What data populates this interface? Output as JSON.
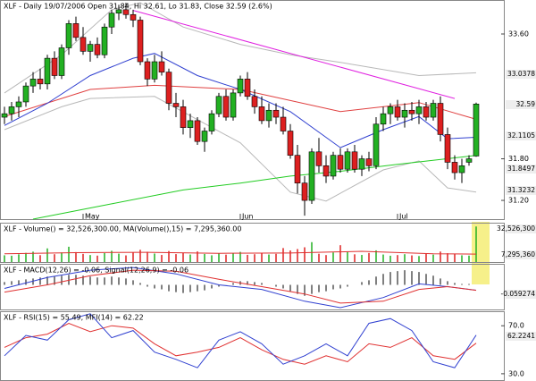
{
  "chart_data": [
    {
      "type": "candlestick",
      "title": "XLF - Daily 19/07/2006 Open 31.84, Hi 32.61, Lo 31.83, Close 32.59 (2.6%)",
      "up_color": "#22b022",
      "down_color": "#dd2020",
      "ylim": [
        30.93,
        34.09
      ],
      "yticks": [
        {
          "value": 33.6,
          "label": "33.60"
        },
        {
          "value": 31.8,
          "label": "31.80"
        },
        {
          "value": 31.2,
          "label": "31.20"
        }
      ],
      "x_labels": [
        {
          "index": 11,
          "label": "May"
        },
        {
          "index": 33,
          "label": "Jun"
        },
        {
          "index": 55,
          "label": "Jul"
        }
      ],
      "ohlc": [
        [
          32.4,
          32.55,
          32.3,
          32.45
        ],
        [
          32.45,
          32.62,
          32.35,
          32.55
        ],
        [
          32.55,
          32.7,
          32.4,
          32.62
        ],
        [
          32.62,
          32.9,
          32.55,
          32.85
        ],
        [
          32.85,
          33.05,
          32.75,
          32.95
        ],
        [
          32.95,
          33.1,
          32.8,
          32.88
        ],
        [
          32.88,
          33.3,
          32.8,
          33.25
        ],
        [
          33.25,
          33.35,
          32.95,
          33.0
        ],
        [
          33.0,
          33.45,
          32.95,
          33.4
        ],
        [
          33.4,
          33.8,
          33.3,
          33.75
        ],
        [
          33.75,
          33.85,
          33.5,
          33.55
        ],
        [
          33.55,
          33.7,
          33.3,
          33.35
        ],
        [
          33.35,
          33.5,
          33.2,
          33.45
        ],
        [
          33.45,
          33.55,
          33.25,
          33.3
        ],
        [
          33.3,
          33.75,
          33.25,
          33.7
        ],
        [
          33.7,
          33.95,
          33.6,
          33.9
        ],
        [
          33.9,
          34.02,
          33.8,
          33.95
        ],
        [
          33.95,
          34.05,
          33.82,
          33.88
        ],
        [
          33.88,
          33.95,
          33.7,
          33.8
        ],
        [
          33.8,
          33.85,
          33.15,
          33.2
        ],
        [
          33.2,
          33.25,
          32.85,
          32.95
        ],
        [
          32.95,
          33.3,
          32.9,
          33.2
        ],
        [
          33.2,
          33.35,
          33.0,
          33.05
        ],
        [
          33.05,
          33.1,
          32.5,
          32.6
        ],
        [
          32.6,
          32.75,
          32.4,
          32.55
        ],
        [
          32.55,
          32.65,
          32.15,
          32.25
        ],
        [
          32.25,
          32.45,
          32.1,
          32.35
        ],
        [
          32.35,
          32.4,
          32.0,
          32.05
        ],
        [
          32.05,
          32.25,
          31.9,
          32.2
        ],
        [
          32.2,
          32.5,
          32.15,
          32.45
        ],
        [
          32.45,
          32.75,
          32.4,
          32.7
        ],
        [
          32.7,
          32.8,
          32.35,
          32.4
        ],
        [
          32.4,
          32.8,
          32.35,
          32.75
        ],
        [
          32.75,
          33.0,
          32.7,
          32.95
        ],
        [
          32.95,
          33.05,
          32.65,
          32.7
        ],
        [
          32.7,
          32.8,
          32.45,
          32.55
        ],
        [
          32.55,
          32.7,
          32.3,
          32.35
        ],
        [
          32.35,
          32.6,
          32.25,
          32.5
        ],
        [
          32.5,
          32.6,
          32.3,
          32.4
        ],
        [
          32.4,
          32.55,
          32.15,
          32.2
        ],
        [
          32.2,
          32.3,
          31.8,
          31.85
        ],
        [
          31.85,
          32.0,
          31.3,
          31.45
        ],
        [
          31.45,
          31.55,
          30.98,
          31.2
        ],
        [
          31.2,
          31.95,
          31.15,
          31.9
        ],
        [
          31.9,
          32.1,
          31.6,
          31.7
        ],
        [
          31.7,
          31.85,
          31.45,
          31.55
        ],
        [
          31.55,
          31.9,
          31.5,
          31.85
        ],
        [
          31.85,
          31.95,
          31.6,
          31.65
        ],
        [
          31.65,
          31.95,
          31.6,
          31.9
        ],
        [
          31.9,
          32.0,
          31.6,
          31.65
        ],
        [
          31.65,
          31.85,
          31.55,
          31.8
        ],
        [
          31.8,
          31.9,
          31.62,
          31.7
        ],
        [
          31.7,
          32.4,
          31.65,
          32.3
        ],
        [
          32.3,
          32.55,
          32.2,
          32.45
        ],
        [
          32.45,
          32.6,
          32.3,
          32.55
        ],
        [
          32.55,
          32.65,
          32.35,
          32.4
        ],
        [
          32.4,
          32.6,
          32.25,
          32.5
        ],
        [
          32.5,
          32.62,
          32.35,
          32.45
        ],
        [
          32.45,
          32.65,
          32.3,
          32.55
        ],
        [
          32.55,
          32.62,
          32.35,
          32.4
        ],
        [
          32.4,
          32.65,
          32.35,
          32.6
        ],
        [
          32.6,
          32.7,
          32.05,
          32.15
        ],
        [
          32.15,
          32.25,
          31.65,
          31.75
        ],
        [
          31.75,
          31.85,
          31.5,
          31.6
        ],
        [
          31.6,
          31.8,
          31.45,
          31.7
        ],
        [
          31.75,
          31.85,
          31.7,
          31.8
        ],
        [
          31.84,
          32.61,
          31.83,
          32.59
        ]
      ],
      "series": [
        {
          "color": "#b8b8b8",
          "x": [
            0,
            8,
            15,
            19,
            25,
            33,
            40,
            47,
            58,
            66
          ],
          "values": [
            32.75,
            33.3,
            33.95,
            34.05,
            33.7,
            33.45,
            33.3,
            33.19,
            33.0,
            33.04
          ]
        },
        {
          "color": "#b8b8b8",
          "x": [
            0,
            8,
            12,
            21,
            33,
            40,
            45,
            53,
            58,
            62,
            66
          ],
          "values": [
            32.22,
            32.55,
            32.67,
            32.7,
            32.03,
            31.32,
            31.19,
            31.64,
            31.77,
            31.38,
            31.32
          ]
        },
        {
          "color": "#22cc22",
          "x": [
            4,
            15,
            25,
            33,
            40,
            47,
            55,
            66
          ],
          "values": [
            30.93,
            31.15,
            31.35,
            31.45,
            31.55,
            31.62,
            31.72,
            31.85
          ]
        },
        {
          "color": "#e04040",
          "x": [
            0,
            12,
            21,
            33,
            47,
            58,
            66
          ],
          "values": [
            32.41,
            32.8,
            32.86,
            32.8,
            32.48,
            32.61,
            32.37
          ]
        },
        {
          "color": "#3040d0",
          "x": [
            0,
            6,
            12,
            18,
            21,
            27,
            33,
            40,
            47,
            53,
            58,
            62,
            66
          ],
          "values": [
            32.28,
            32.6,
            33.0,
            33.25,
            33.32,
            33.0,
            32.8,
            32.48,
            31.96,
            32.22,
            32.41,
            32.09,
            32.11
          ]
        },
        {
          "color": "#e020e0",
          "x": [
            18,
            63
          ],
          "values": [
            33.94,
            32.67
          ]
        }
      ],
      "last_labels": [
        {
          "label": "33.0378",
          "color": "#666666"
        },
        {
          "label": "32.59",
          "color": "#000000"
        },
        {
          "label": "32.1105",
          "color": "#2030c0"
        },
        {
          "label": "31.8497",
          "color": "#10a010"
        },
        {
          "label": "31.3232",
          "color": "#666666"
        }
      ]
    },
    {
      "type": "bar",
      "title": "XLF - Volume() = 32,526,300.00, MA(Volume(),15) = 7,295,360.00",
      "ylim": [
        0,
        36000000
      ],
      "values": [
        6200000,
        5800000,
        7100000,
        8400000,
        9500000,
        6300000,
        12500000,
        7200000,
        8800000,
        14000000,
        9100000,
        7500000,
        6400000,
        5900000,
        8200000,
        10300000,
        7700000,
        6100000,
        8900000,
        11200000,
        9400000,
        7800000,
        6500000,
        10100000,
        7300000,
        8600000,
        6900000,
        9700000,
        7400000,
        6200000,
        8100000,
        6800000,
        7900000,
        9300000,
        6600000,
        7200000,
        8400000,
        6900000,
        7500000,
        12800000,
        10600000,
        11900000,
        13500000,
        18200000,
        7600000,
        6400000,
        8800000,
        15400000,
        9200000,
        7100000,
        6500000,
        8300000,
        10700000,
        6900000,
        5800000,
        6400000,
        7200000,
        6100000,
        5500000,
        7400000,
        6800000,
        9600000,
        8100000,
        7300000,
        6200000,
        5900000,
        32526300
      ],
      "series": [
        {
          "color": "#e03030",
          "x": [
            0,
            10,
            20,
            30,
            40,
            50,
            60,
            66
          ],
          "values": [
            7500000,
            8600000,
            8900000,
            8000000,
            8300000,
            9800000,
            7600000,
            7295360
          ]
        }
      ],
      "last_labels": [
        {
          "label": "32,526,300",
          "color": "#10a010"
        },
        {
          "label": "7,295,360",
          "color": "#e03030"
        }
      ]
    },
    {
      "type": "macd",
      "title": "XLF - MACD(12,26) = -0.06, Signal(12,26,9) = -0.06",
      "ylim": [
        -0.27,
        0.23
      ],
      "histogram": [
        0.03,
        0.04,
        0.05,
        0.06,
        0.07,
        0.08,
        0.09,
        0.09,
        0.1,
        0.11,
        0.11,
        0.1,
        0.09,
        0.08,
        0.08,
        0.09,
        0.08,
        0.07,
        0.05,
        0.02,
        -0.02,
        -0.04,
        -0.05,
        -0.07,
        -0.08,
        -0.09,
        -0.08,
        -0.07,
        -0.06,
        -0.04,
        -0.02,
        0.0,
        0.02,
        0.04,
        0.04,
        0.03,
        0.02,
        0.0,
        -0.02,
        -0.04,
        -0.07,
        -0.1,
        -0.12,
        -0.1,
        -0.08,
        -0.07,
        -0.05,
        -0.04,
        -0.02,
        0.0,
        0.03,
        0.05,
        0.09,
        0.12,
        0.14,
        0.15,
        0.16,
        0.15,
        0.14,
        0.12,
        0.1,
        0.07,
        0.04,
        0.02,
        0.01,
        0.01,
        0.0
      ],
      "series": [
        {
          "color": "#3040d0",
          "x": [
            0,
            6,
            12,
            18,
            24,
            30,
            36,
            42,
            47,
            53,
            58,
            62,
            66
          ],
          "values": [
            -0.04,
            0.08,
            0.16,
            0.19,
            0.12,
            0.0,
            -0.05,
            -0.18,
            -0.25,
            -0.14,
            0.01,
            -0.02,
            -0.059
          ]
        },
        {
          "color": "#e03030",
          "x": [
            0,
            6,
            12,
            18,
            24,
            30,
            36,
            42,
            47,
            53,
            58,
            62,
            66
          ],
          "values": [
            -0.08,
            0.0,
            0.1,
            0.16,
            0.15,
            0.06,
            -0.02,
            -0.1,
            -0.2,
            -0.18,
            -0.05,
            -0.02,
            -0.06
          ]
        }
      ],
      "last_labels": [
        {
          "label": "-0.059274",
          "color": "#2030c0"
        }
      ]
    },
    {
      "type": "line",
      "title": "XLF - RSI(15) = 55.49, MFI(14) = 62.22",
      "ylim": [
        24.7,
        82.1
      ],
      "yticks": [
        {
          "value": 70,
          "label": "70.0"
        },
        {
          "value": 30,
          "label": "30.0"
        }
      ],
      "series": [
        {
          "color": "#e03030",
          "x": [
            0,
            3,
            6,
            9,
            12,
            15,
            18,
            21,
            24,
            27,
            30,
            33,
            36,
            39,
            42,
            45,
            48,
            51,
            54,
            57,
            60,
            63,
            66
          ],
          "values": [
            52,
            60,
            63,
            72,
            65,
            70,
            68,
            55,
            45,
            48,
            52,
            60,
            50,
            42,
            38,
            45,
            40,
            55,
            52,
            60,
            45,
            42,
            55.49
          ]
        },
        {
          "color": "#3040d0",
          "x": [
            0,
            3,
            6,
            9,
            12,
            15,
            18,
            21,
            24,
            27,
            30,
            33,
            36,
            39,
            42,
            45,
            48,
            51,
            54,
            57,
            60,
            63,
            66
          ],
          "values": [
            45,
            62,
            58,
            75,
            80,
            60,
            66,
            48,
            42,
            35,
            58,
            65,
            55,
            38,
            45,
            55,
            45,
            72,
            76,
            66,
            40,
            35,
            62.22
          ]
        }
      ],
      "last_labels": [
        {
          "label": "62.2241",
          "color": "#2030c0"
        }
      ]
    }
  ]
}
